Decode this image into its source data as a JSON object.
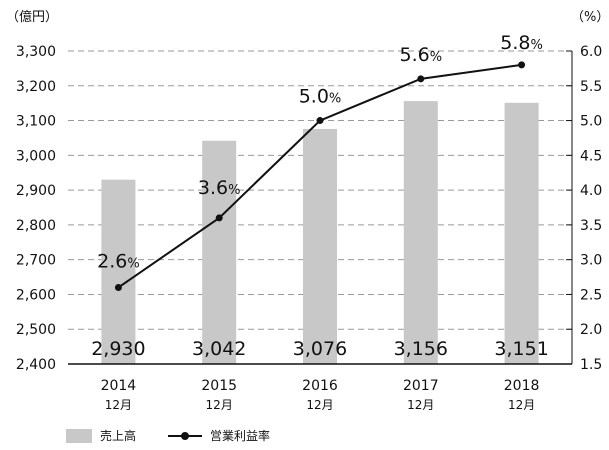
{
  "chart_data": {
    "type": "bar+line",
    "categories": [
      "2014",
      "2015",
      "2016",
      "2017",
      "2018"
    ],
    "category_sublabel": "12月",
    "left_axis": {
      "unit_label": "（億円）",
      "ylim": [
        2400,
        3350
      ],
      "ticks": [
        "2,400",
        "2,500",
        "2,600",
        "2,700",
        "2,800",
        "2,900",
        "3,000",
        "3,100",
        "3,200",
        "3,300"
      ]
    },
    "right_axis": {
      "unit_label": "（%）",
      "ylim": [
        1.5,
        6.0
      ],
      "ticks": [
        "1.5",
        "2.0",
        "2.5",
        "3.0",
        "3.5",
        "4.0",
        "4.5",
        "5.0",
        "5.5",
        "6.0"
      ]
    },
    "series": [
      {
        "name": "売上高",
        "type": "bar",
        "axis": "left",
        "values": [
          2930,
          3042,
          3076,
          3156,
          3151
        ],
        "labels": [
          "2,930",
          "3,042",
          "3,076",
          "3,156",
          "3,151"
        ],
        "color": "#c8c8c8"
      },
      {
        "name": "営業利益率",
        "type": "line",
        "axis": "right",
        "values": [
          2.6,
          3.6,
          5.0,
          5.6,
          5.8
        ],
        "labels": [
          "2.6",
          "3.6",
          "5.0",
          "5.6",
          "5.8"
        ],
        "label_suffix": "%",
        "color": "#111111"
      }
    ],
    "grid": true,
    "legend_position": "bottom-left"
  }
}
